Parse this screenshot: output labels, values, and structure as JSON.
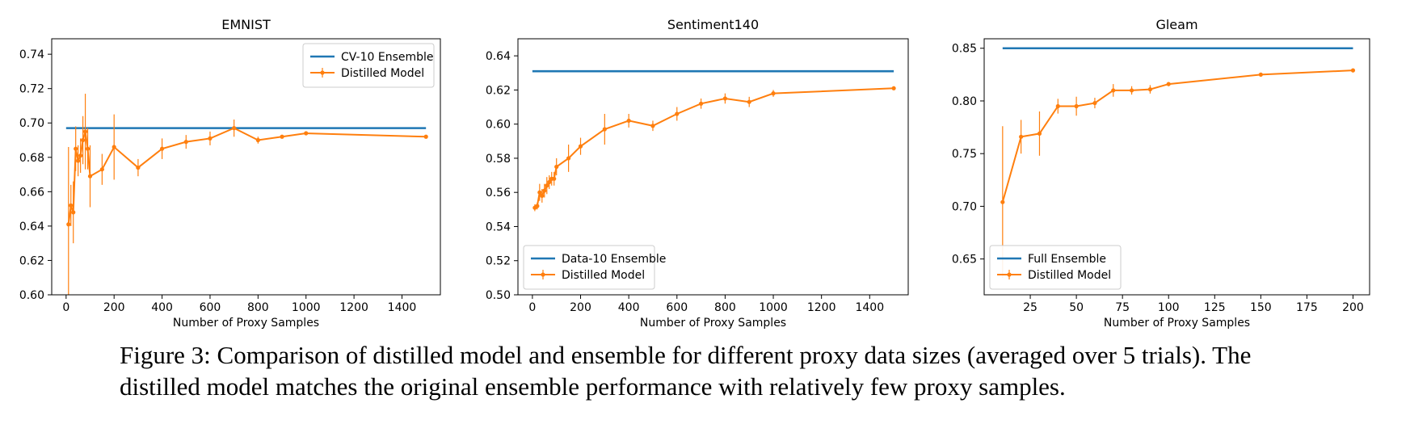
{
  "caption": "Figure 3: Comparison of distilled model and ensemble for different proxy data sizes (averaged over 5 trials). The distilled model matches the original ensemble performance with relatively few proxy samples.",
  "colors": {
    "ensemble": "#1f77b4",
    "distilled": "#ff7f0e"
  },
  "chart_data": [
    {
      "type": "line",
      "title": "EMNIST",
      "xlabel": "Number of Proxy Samples",
      "ylabel": "",
      "xlim": [
        -60,
        1560
      ],
      "ylim": [
        0.6,
        0.749
      ],
      "xticks": [
        0,
        200,
        400,
        600,
        800,
        1000,
        1200,
        1400
      ],
      "yticks": [
        0.6,
        0.62,
        0.64,
        0.66,
        0.68,
        0.7,
        0.72,
        0.74
      ],
      "ytick_decimals": 2,
      "legend_position": "upper-right",
      "grid": false,
      "series": [
        {
          "name": "CV-10 Ensemble",
          "kind": "hline",
          "x": [
            0,
            1500
          ],
          "y": 0.697
        },
        {
          "name": "Distilled Model",
          "kind": "errorbar",
          "x": [
            10,
            20,
            30,
            40,
            50,
            60,
            70,
            80,
            90,
            100,
            150,
            200,
            300,
            400,
            500,
            600,
            700,
            800,
            900,
            1000,
            1500
          ],
          "y": [
            0.641,
            0.652,
            0.648,
            0.685,
            0.678,
            0.681,
            0.69,
            0.695,
            0.685,
            0.669,
            0.673,
            0.686,
            0.674,
            0.685,
            0.689,
            0.691,
            0.697,
            0.69,
            0.692,
            0.694,
            0.692
          ],
          "err": [
            0.045,
            0.012,
            0.018,
            0.013,
            0.009,
            0.01,
            0.014,
            0.022,
            0.012,
            0.018,
            0.009,
            0.019,
            0.005,
            0.006,
            0.004,
            0.004,
            0.005,
            0.002,
            0.001,
            0.001,
            0.001
          ]
        }
      ]
    },
    {
      "type": "line",
      "title": "Sentiment140",
      "xlabel": "Number of Proxy Samples",
      "ylabel": "",
      "xlim": [
        -60,
        1560
      ],
      "ylim": [
        0.5,
        0.65
      ],
      "xticks": [
        0,
        200,
        400,
        600,
        800,
        1000,
        1200,
        1400
      ],
      "yticks": [
        0.5,
        0.52,
        0.54,
        0.56,
        0.58,
        0.6,
        0.62,
        0.64
      ],
      "ytick_decimals": 2,
      "legend_position": "lower-left",
      "grid": false,
      "series": [
        {
          "name": "Data-10 Ensemble",
          "kind": "hline",
          "x": [
            0,
            1500
          ],
          "y": 0.631
        },
        {
          "name": "Distilled Model",
          "kind": "errorbar",
          "x": [
            10,
            20,
            30,
            40,
            50,
            60,
            70,
            80,
            90,
            100,
            150,
            200,
            300,
            400,
            500,
            600,
            700,
            800,
            900,
            1000,
            1500
          ],
          "y": [
            0.551,
            0.552,
            0.56,
            0.558,
            0.561,
            0.564,
            0.566,
            0.568,
            0.568,
            0.575,
            0.58,
            0.587,
            0.597,
            0.602,
            0.599,
            0.606,
            0.612,
            0.615,
            0.613,
            0.618,
            0.621
          ],
          "err": [
            0.002,
            0.002,
            0.005,
            0.004,
            0.004,
            0.005,
            0.004,
            0.004,
            0.004,
            0.005,
            0.008,
            0.005,
            0.009,
            0.004,
            0.003,
            0.004,
            0.003,
            0.003,
            0.003,
            0.002,
            0.001
          ]
        }
      ]
    },
    {
      "type": "line",
      "title": "Gleam",
      "xlabel": "Number of Proxy Samples",
      "ylabel": "",
      "xlim": [
        0,
        209
      ],
      "ylim": [
        0.616,
        0.859
      ],
      "xticks": [
        25,
        50,
        75,
        100,
        125,
        150,
        175,
        200
      ],
      "yticks": [
        0.65,
        0.7,
        0.75,
        0.8,
        0.85
      ],
      "ytick_decimals": 2,
      "legend_position": "lower-left",
      "grid": false,
      "series": [
        {
          "name": "Full Ensemble",
          "kind": "hline",
          "x": [
            10,
            200
          ],
          "y": 0.85
        },
        {
          "name": "Distilled Model",
          "kind": "errorbar",
          "x": [
            10,
            20,
            30,
            40,
            50,
            60,
            70,
            80,
            90,
            100,
            150,
            200
          ],
          "y": [
            0.704,
            0.766,
            0.769,
            0.795,
            0.795,
            0.798,
            0.81,
            0.81,
            0.811,
            0.816,
            0.825,
            0.829
          ],
          "err": [
            0.072,
            0.016,
            0.021,
            0.007,
            0.009,
            0.005,
            0.006,
            0.004,
            0.004,
            0.002,
            0.001,
            0.001
          ]
        }
      ]
    }
  ]
}
